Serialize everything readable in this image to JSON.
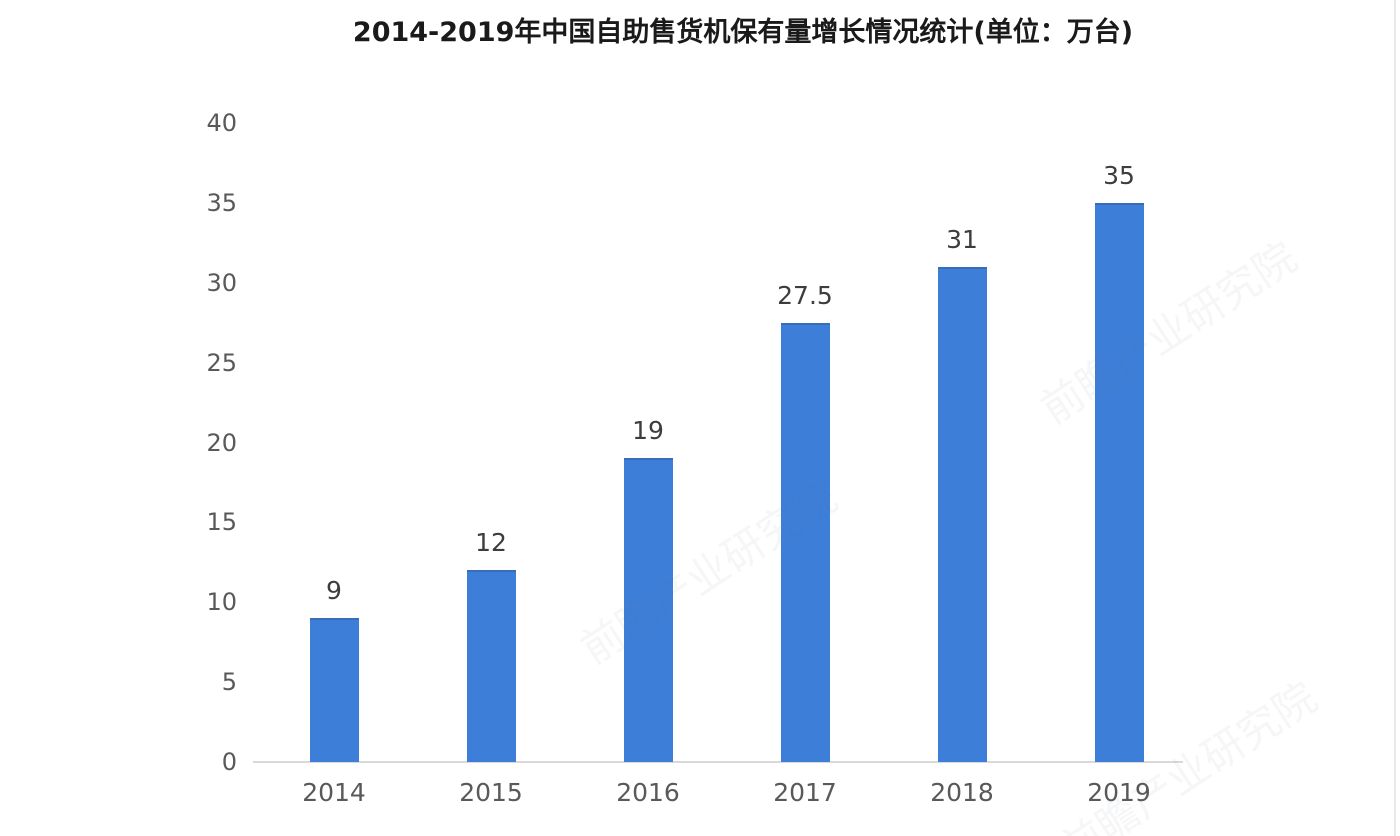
{
  "title": "2014-2019年中国自助售货机保有量增长情况统计(单位：万台)",
  "watermark": {
    "text": "前瞻产业研究院"
  },
  "chart_data": {
    "type": "bar",
    "title": "2014-2019年中国自助售货机保有量增长情况统计(单位：万台)",
    "categories": [
      "2014",
      "2015",
      "2016",
      "2017",
      "2018",
      "2019"
    ],
    "values": [
      9,
      12,
      19,
      27.5,
      31,
      35
    ],
    "value_labels": [
      "9",
      "12",
      "19",
      "27.5",
      "31",
      "35"
    ],
    "xlabel": "",
    "ylabel": "",
    "unit": "万台",
    "ylim": [
      0,
      40
    ],
    "yticks": [
      0,
      5,
      10,
      15,
      20,
      25,
      30,
      35,
      40
    ],
    "grid": false,
    "legend": false,
    "bar_color": "#3d7ed9",
    "title_color": "#1a1a1a",
    "tick_label_color": "#595959",
    "value_label_color": "#3d3d3d",
    "axis_line_color": "#d9d9d9",
    "background_color": "#ffffff"
  }
}
